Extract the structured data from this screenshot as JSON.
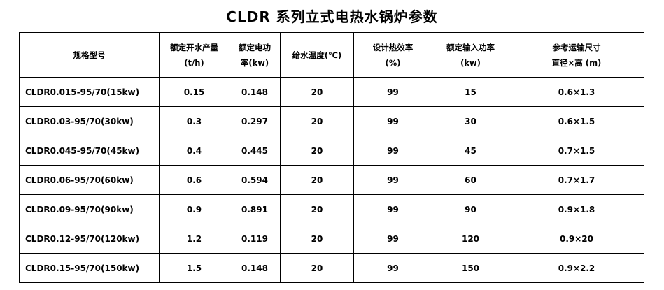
{
  "title": "CLDR  系列立式电热水锅炉参数",
  "table": {
    "header": [
      [
        "规格型号"
      ],
      [
        "额定开水产量",
        "(t/h)"
      ],
      [
        "额定电功",
        "率(kw)"
      ],
      [
        "给水温度(℃)"
      ],
      [
        "设计热效率",
        "(%)"
      ],
      [
        "额定输入功率",
        "(kw)"
      ],
      [
        "参考运输尺寸",
        "直径×高 (m)"
      ]
    ],
    "rows": [
      [
        "CLDR0.015-95/70(15kw)",
        "0.15",
        "0.148",
        "20",
        "99",
        "15",
        "0.6×1.3"
      ],
      [
        "CLDR0.03-95/70(30kw)",
        "0.3",
        "0.297",
        "20",
        "99",
        "30",
        "0.6×1.5"
      ],
      [
        "CLDR0.045-95/70(45kw)",
        "0.4",
        "0.445",
        "20",
        "99",
        "45",
        "0.7×1.5"
      ],
      [
        "CLDR0.06-95/70(60kw)",
        "0.6",
        "0.594",
        "20",
        "99",
        "60",
        "0.7×1.7"
      ],
      [
        "CLDR0.09-95/70(90kw)",
        "0.9",
        "0.891",
        "20",
        "99",
        "90",
        "0.9×1.8"
      ],
      [
        "CLDR0.12-95/70(120kw)",
        "1.2",
        "0.119",
        "20",
        "99",
        "120",
        "0.9×20"
      ],
      [
        "CLDR0.15-95/70(150kw)",
        "1.5",
        "0.148",
        "20",
        "99",
        "150",
        "0.9×2.2"
      ]
    ]
  }
}
